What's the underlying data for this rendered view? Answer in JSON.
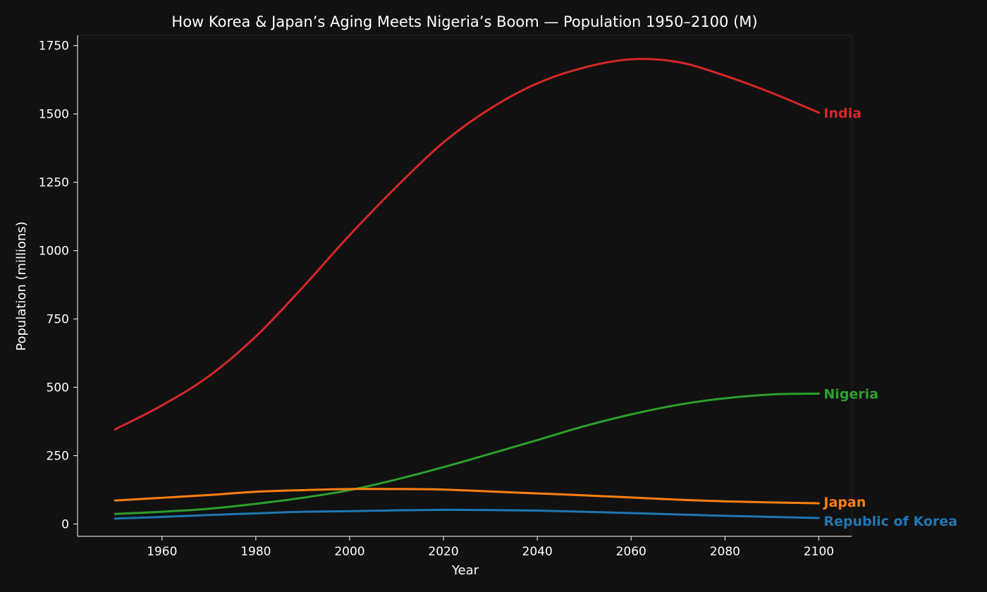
{
  "chart_data": {
    "type": "line",
    "title": "How Korea & Japan’s Aging Meets Nigeria’s Boom — Population 1950–2100 (M)",
    "xlabel": "Year",
    "ylabel": "Population (millions)",
    "xlim": [
      1942,
      2107
    ],
    "ylim": [
      -45,
      1788
    ],
    "xticks": [
      1960,
      1980,
      2000,
      2020,
      2040,
      2060,
      2080,
      2100
    ],
    "yticks": [
      0,
      250,
      500,
      750,
      1000,
      1250,
      1500,
      1750
    ],
    "grid": false,
    "legend": "direct labels at line ends",
    "x": [
      1950,
      1960,
      1970,
      1980,
      1990,
      2000,
      2010,
      2020,
      2030,
      2040,
      2050,
      2060,
      2070,
      2080,
      2090,
      2100
    ],
    "series": [
      {
        "name": "India",
        "color": "#d62728",
        "values": [
          346,
          434,
          541,
          686,
          866,
          1057,
          1234,
          1396,
          1520,
          1612,
          1670,
          1700,
          1690,
          1640,
          1577,
          1505
        ]
      },
      {
        "name": "Nigeria",
        "color": "#2ca02c",
        "values": [
          37,
          45,
          56,
          74,
          96,
          124,
          163,
          208,
          257,
          307,
          358,
          401,
          436,
          460,
          474,
          477
        ]
      },
      {
        "name": "Japan",
        "color": "#ff7f0e",
        "values": [
          86,
          96,
          106,
          118,
          124,
          128,
          128,
          126,
          119,
          112,
          105,
          97,
          89,
          83,
          79,
          76
        ]
      },
      {
        "name": "Republic of Korea",
        "color": "#1f77b4",
        "values": [
          20,
          26,
          33,
          39,
          45,
          47,
          50,
          52,
          51,
          49,
          45,
          40,
          35,
          30,
          26,
          22
        ]
      }
    ]
  }
}
